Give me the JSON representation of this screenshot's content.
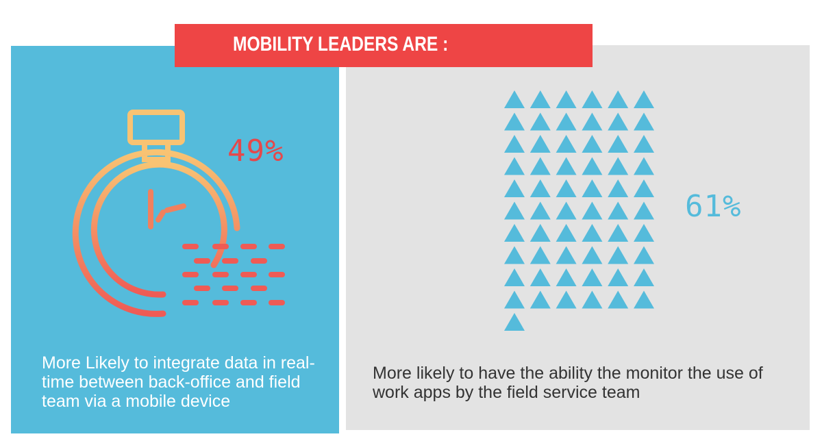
{
  "banner": {
    "title": "MOBILITY LEADERS ARE :"
  },
  "left_card": {
    "stat": "49%",
    "caption": "More Likely to integrate data in real-time between back-office and field team via a mobile device",
    "icon": "stopwatch-icon",
    "accent": "#e5484b"
  },
  "right_card": {
    "stat": "61%",
    "caption": "More likely to have the ability the monitor the use of work apps by the field service team",
    "icon": "triangle-grid-icon",
    "triangle_count": 61,
    "accent": "#55bbdb"
  },
  "colors": {
    "blue": "#55bbdb",
    "red": "#ee4545",
    "gray": "#e3e3e3",
    "orange": "#f6b070"
  }
}
